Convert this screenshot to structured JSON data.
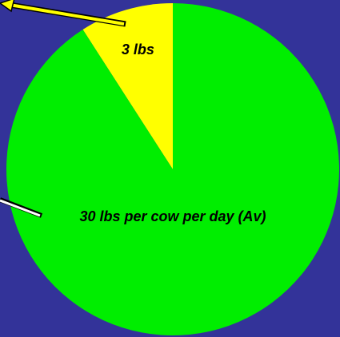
{
  "chart_data": {
    "type": "pie",
    "values": [
      3,
      30
    ],
    "value_labels": [
      "3 lbs",
      "30 lbs per cow per day (Av)"
    ],
    "colors": [
      "#ffff00",
      "#00ee00"
    ],
    "start": "top",
    "direction": "counterclockwise"
  }
}
